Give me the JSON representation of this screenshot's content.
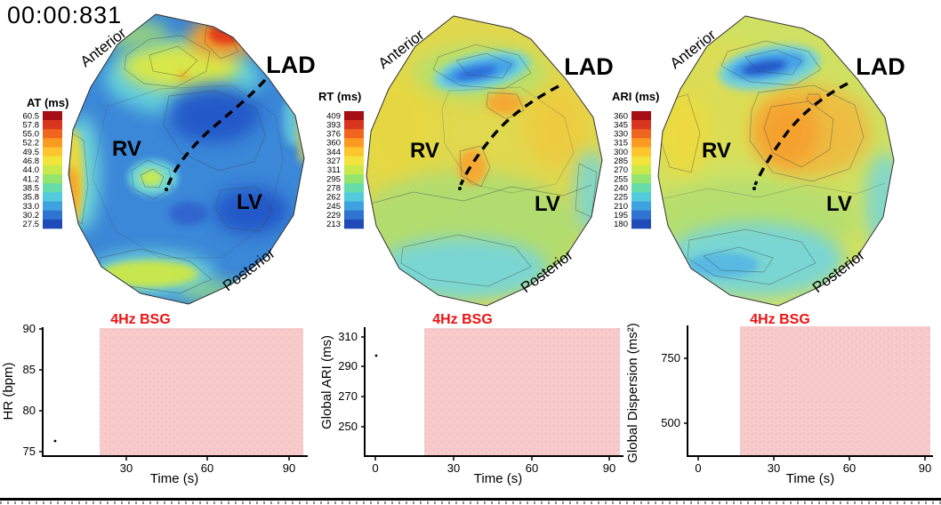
{
  "timestamp": "00:00:831",
  "colors": {
    "jet": [
      "#a50f15",
      "#d93620",
      "#f0651f",
      "#fb9a20",
      "#fdc52e",
      "#f2e43c",
      "#c9e94b",
      "#94e56e",
      "#67dcab",
      "#52cbdc",
      "#3fa2e0",
      "#2f74d0",
      "#1f4bb8"
    ],
    "bsg_region": "#f8caca",
    "bsg_text": "#ee1111",
    "map_base_at": "#3b87d8",
    "map_base_rt": "#e0d84e",
    "map_base_ari": "#cfe163",
    "axis": "#000000"
  },
  "maps": [
    {
      "title": "AT (ms)",
      "colorbar_values": [
        "60.5",
        "57.8",
        "55.0",
        "52.2",
        "49.5",
        "46.8",
        "44.0",
        "41.2",
        "38.5",
        "35.8",
        "33.0",
        "30.2",
        "27.5"
      ],
      "labels": {
        "anterior": "Anterior",
        "posterior": "Posterior",
        "lad": "LAD",
        "rv": "RV",
        "lv": "LV"
      }
    },
    {
      "title": "RT (ms)",
      "colorbar_values": [
        "409",
        "393",
        "376",
        "360",
        "344",
        "327",
        "311",
        "295",
        "278",
        "262",
        "245",
        "229",
        "213"
      ],
      "labels": {
        "anterior": "Anterior",
        "posterior": "Posterior",
        "lad": "LAD",
        "rv": "RV",
        "lv": "LV"
      }
    },
    {
      "title": "ARI (ms)",
      "colorbar_values": [
        "360",
        "345",
        "330",
        "315",
        "300",
        "285",
        "270",
        "255",
        "240",
        "225",
        "210",
        "195",
        "180"
      ],
      "labels": {
        "anterior": "Anterior",
        "posterior": "Posterior",
        "lad": "LAD",
        "rv": "RV",
        "lv": "LV"
      }
    }
  ],
  "plots": [
    {
      "title": "4Hz BSG",
      "ylabel": "HR (bpm)",
      "xlabel": "Time (s)",
      "yticks": [
        "90",
        "85",
        "80",
        "75"
      ],
      "xticks": [
        "30",
        "60",
        "90"
      ]
    },
    {
      "title": "4Hz BSG",
      "ylabel": "Global ARI (ms)",
      "xlabel": "Time (s)",
      "yticks": [
        "310",
        "290",
        "270",
        "250"
      ],
      "xticks": [
        "0",
        "30",
        "60",
        "90"
      ]
    },
    {
      "title": "4Hz BSG",
      "ylabel": "Global Dispersion (ms²)",
      "xlabel": "Time (s)",
      "yticks": [
        "750",
        "500"
      ],
      "xticks": [
        "0",
        "30",
        "60",
        "90"
      ]
    }
  ],
  "chart_data": [
    {
      "type": "heatmap",
      "title": "AT (ms)",
      "legend_position": "left",
      "value_range_ms": [
        27.5,
        60.5
      ],
      "colorbar_ticks": [
        60.5,
        57.8,
        55.0,
        52.2,
        49.5,
        46.8,
        44.0,
        41.2,
        38.5,
        35.8,
        33.0,
        30.2,
        27.5
      ],
      "region_labels": [
        "Anterior",
        "LAD",
        "RV",
        "LV",
        "Posterior"
      ],
      "annotations": [
        "dashed LAD artery line from upper-right edge to map center"
      ],
      "dominant_pattern": "early activation (blue ~28-36 ms) over LV and central area; latest activation (red ~58-60 ms) at upper-right near LAD; yellow-green band (~44-50 ms) along top, left edge and lower-left; small yellow-green island (~44 ms) left of center"
    },
    {
      "type": "heatmap",
      "title": "RT (ms)",
      "legend_position": "left",
      "value_range_ms": [
        213,
        409
      ],
      "colorbar_ticks": [
        409,
        393,
        376,
        360,
        344,
        327,
        311,
        295,
        278,
        262,
        245,
        229,
        213
      ],
      "region_labels": [
        "Anterior",
        "LAD",
        "RV",
        "LV",
        "Posterior"
      ],
      "annotations": [
        "dashed LAD artery line curving from upper-right edge to map center"
      ],
      "dominant_pattern": "mostly yellow (~327-344 ms) with green lower half; early repolarization (blue ~230-260 ms) in elongated anterior band; late (orange ~360 ms) patches along LAD; cyan (~280-300 ms) posterior and right edge"
    },
    {
      "type": "heatmap",
      "title": "ARI (ms)",
      "legend_position": "left",
      "value_range_ms": [
        180,
        360
      ],
      "colorbar_ticks": [
        360,
        345,
        330,
        315,
        300,
        285,
        270,
        255,
        240,
        225,
        210,
        195,
        180
      ],
      "region_labels": [
        "Anterior",
        "LAD",
        "RV",
        "LV",
        "Posterior"
      ],
      "annotations": [
        "dashed LAD artery line curving from upper-right edge to map center"
      ],
      "dominant_pattern": "yellow-green base (~270-300 ms); short ARI (blue ~200-230 ms) anterior band; long ARI (orange ~315-330 ms) central region along LAD; cyan (~240-255 ms) posterior with small blue patch"
    },
    {
      "type": "scatter",
      "title": "4Hz BSG",
      "xlabel": "Time (s)",
      "ylabel": "HR (bpm)",
      "xlim": [
        -4,
        95
      ],
      "ylim": [
        74.5,
        90.5
      ],
      "xticks": [
        30,
        60,
        90
      ],
      "yticks": [
        75,
        80,
        85,
        90
      ],
      "points": [
        {
          "x": 4,
          "y": 76.3
        }
      ],
      "shaded_region": {
        "x_start": 20,
        "x_end": 95,
        "label": "4Hz BSG",
        "color": "#f8caca"
      }
    },
    {
      "type": "scatter",
      "title": "4Hz BSG",
      "xlabel": "Time (s)",
      "ylabel": "Global ARI (ms)",
      "xlim": [
        -4,
        95
      ],
      "ylim": [
        232,
        316
      ],
      "xticks": [
        0,
        30,
        60,
        90
      ],
      "yticks": [
        250,
        270,
        290,
        310
      ],
      "points": [
        {
          "x": 0.5,
          "y": 297
        }
      ],
      "shaded_region": {
        "x_start": 19,
        "x_end": 95,
        "label": "4Hz BSG",
        "color": "#f8caca"
      }
    },
    {
      "type": "scatter",
      "title": "4Hz BSG",
      "xlabel": "Time (s)",
      "ylabel": "Global Dispersion (ms²)",
      "xlim": [
        -4,
        95
      ],
      "ylim": [
        375,
        875
      ],
      "xticks": [
        0,
        30,
        60,
        90
      ],
      "yticks": [
        500,
        750
      ],
      "points": [],
      "shaded_region": {
        "x_start": 16,
        "x_end": 95,
        "label": "4Hz BSG",
        "color": "#f8caca"
      }
    }
  ]
}
